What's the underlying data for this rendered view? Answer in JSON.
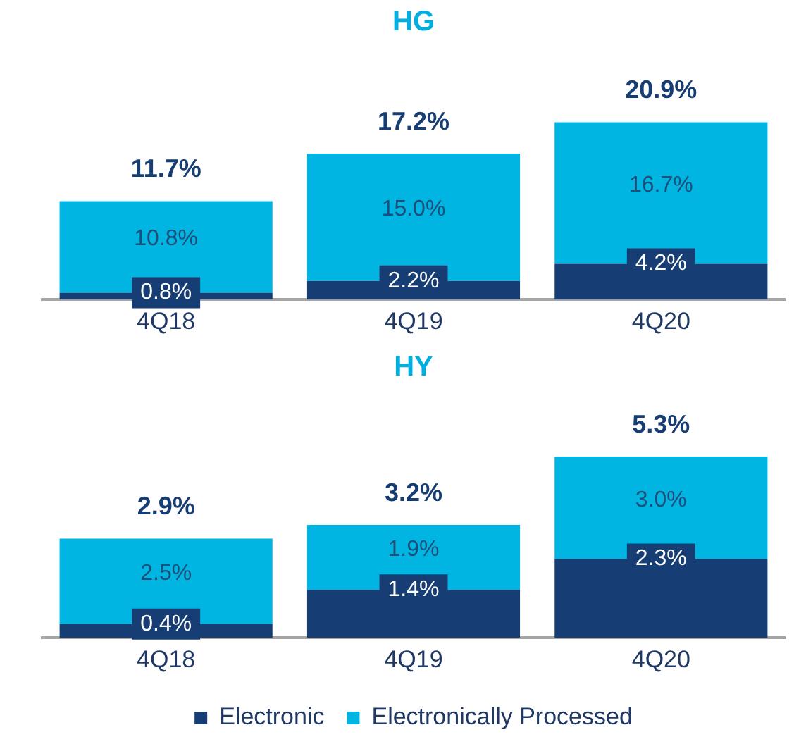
{
  "chart_data": [
    {
      "type": "bar",
      "title": "HG",
      "stacked": true,
      "categories": [
        "4Q18",
        "4Q19",
        "4Q20"
      ],
      "legend": false,
      "series": [
        {
          "color": "#163e74",
          "values": [
            0.8,
            2.2,
            4.2
          ],
          "value_labels": [
            "0.8%",
            "2.2%",
            "4.2%"
          ]
        },
        {
          "color": "#00b5e2",
          "values": [
            10.8,
            15.0,
            16.7
          ],
          "value_labels": [
            "10.8%",
            "15.0%",
            "16.7%"
          ]
        }
      ],
      "totals": [
        "11.7%",
        "17.2%",
        "20.9%"
      ]
    },
    {
      "type": "bar",
      "title": "HY",
      "stacked": true,
      "categories": [
        "4Q18",
        "4Q19",
        "4Q20"
      ],
      "legend": "bottom",
      "series": [
        {
          "name": "Electronic",
          "color": "#163e74",
          "values": [
            0.4,
            1.4,
            2.3
          ],
          "value_labels": [
            "0.4%",
            "1.4%",
            "2.3%"
          ]
        },
        {
          "name": "Electronically Processed",
          "color": "#00b5e2",
          "values": [
            2.5,
            1.9,
            3.0
          ],
          "value_labels": [
            "2.5%",
            "1.9%",
            "3.0%"
          ]
        }
      ],
      "totals": [
        "2.9%",
        "3.2%",
        "5.3%"
      ]
    }
  ]
}
